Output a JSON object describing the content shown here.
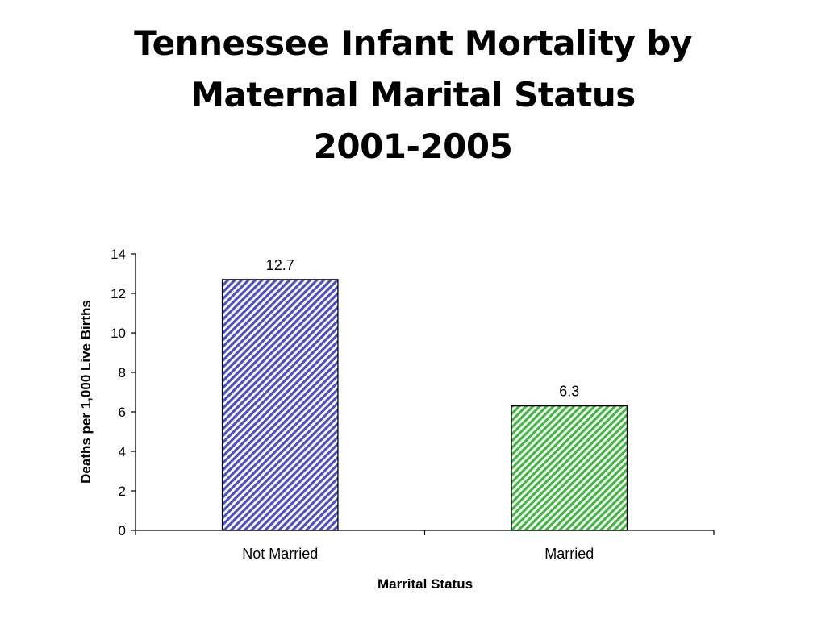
{
  "slide": {
    "title_lines": [
      "Tennessee Infant Mortality by",
      "Maternal Marital Status",
      "2001-2005"
    ]
  },
  "chart_data": {
    "type": "bar",
    "title": "Tennessee Infant Mortality by Maternal Marital Status 2001-2005",
    "categories": [
      "Not Married",
      "Married"
    ],
    "values": [
      12.7,
      6.3
    ],
    "data_labels": [
      "12.7",
      "6.3"
    ],
    "xlabel": "Marrital Status",
    "ylabel": "Deaths per 1,000 Live Births",
    "ylim": [
      0,
      14
    ],
    "yticks": [
      0,
      2,
      4,
      6,
      8,
      10,
      12,
      14
    ],
    "grid": false,
    "legend": "none",
    "bar_colors": [
      "#4a4fc4",
      "#3fb83f"
    ],
    "bar_pattern": "diagonal-stripes"
  }
}
